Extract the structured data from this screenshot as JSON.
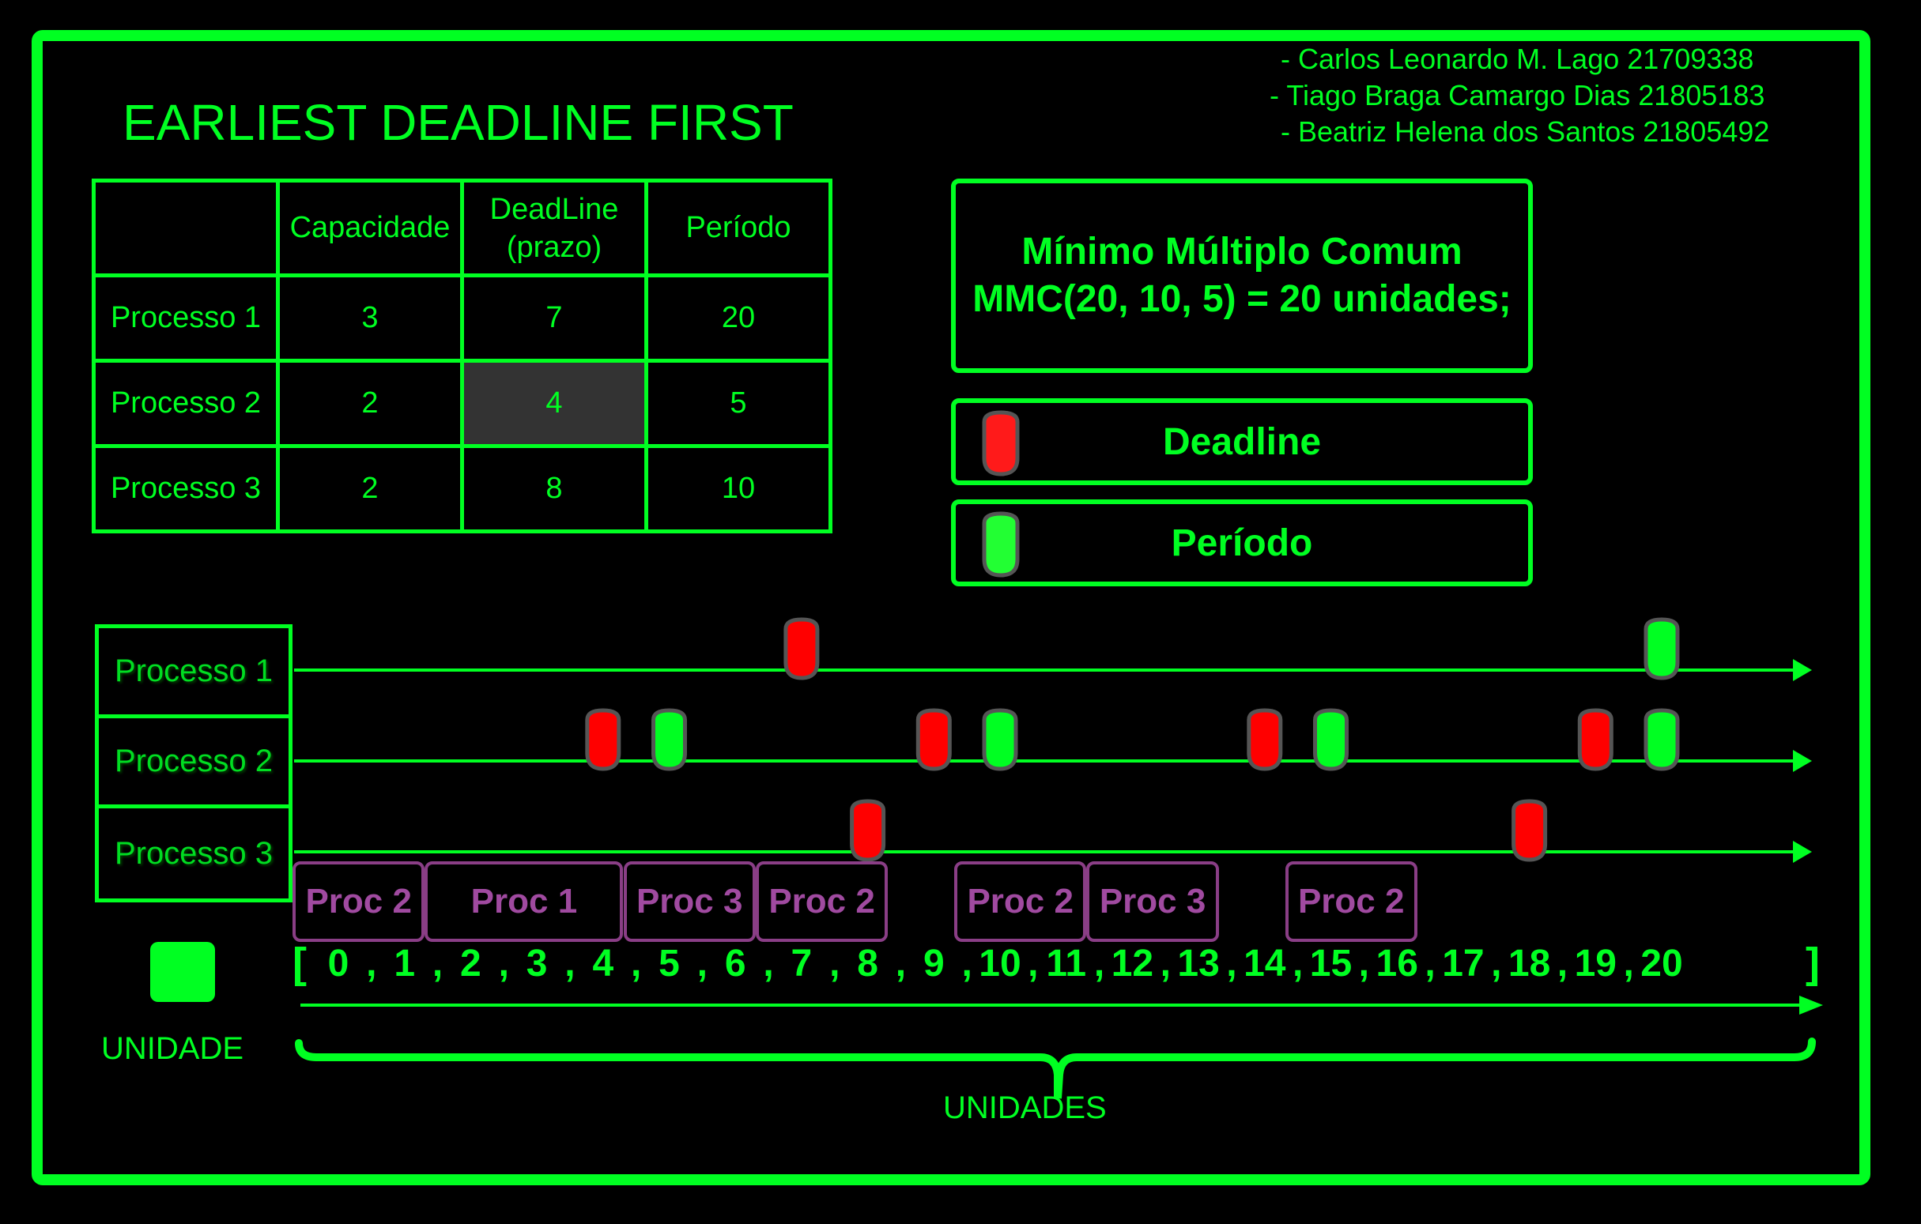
{
  "title": "EARLIEST DEADLINE FIRST",
  "authors": [
    "- Carlos Leonardo M. Lago 21709338",
    "- Tiago Braga Camargo Dias 21805183",
    " - Beatriz Helena dos Santos 21805492"
  ],
  "table": {
    "headers": [
      "",
      "Capacidade",
      "DeadLine\n(prazo)",
      "Período"
    ],
    "rows": [
      [
        "Processo 1",
        "3",
        "7",
        "20"
      ],
      [
        "Processo 2",
        "2",
        "4",
        "5"
      ],
      [
        "Processo 3",
        "2",
        "8",
        "10"
      ]
    ],
    "highlighted_cell": "Processo 2 / DeadLine"
  },
  "mmc": {
    "line1": "Mínimo Múltiplo Comum",
    "line2": "MMC(20, 10, 5) = 20 unidades;"
  },
  "legend": {
    "deadline": "Deadline",
    "periodo": "Período"
  },
  "timeline": {
    "rows": [
      "Processo 1",
      "Processo 2",
      "Processo 3"
    ],
    "markers": {
      "Processo 1": {
        "deadline": [
          7
        ],
        "periodo": [
          20
        ]
      },
      "Processo 2": {
        "deadline": [
          4,
          9,
          14,
          19
        ],
        "periodo": [
          5,
          10,
          15,
          20
        ]
      },
      "Processo 3": {
        "deadline": [
          8,
          18
        ],
        "periodo": []
      }
    },
    "schedule": [
      {
        "label": "Proc 2",
        "start": 0,
        "end": 2
      },
      {
        "label": "Proc 1",
        "start": 2,
        "end": 5
      },
      {
        "label": "Proc 3",
        "start": 5,
        "end": 7
      },
      {
        "label": "Proc 2",
        "start": 7,
        "end": 9
      },
      {
        "label": "Proc 2",
        "start": 10,
        "end": 12
      },
      {
        "label": "Proc 3",
        "start": 12,
        "end": 14
      },
      {
        "label": "Proc 2",
        "start": 15,
        "end": 17
      }
    ],
    "ticks": [
      "0",
      "1",
      "2",
      "3",
      "4",
      "5",
      "6",
      "7",
      "8",
      "9",
      "10",
      "11",
      "12",
      "13",
      "14",
      "15",
      "16",
      "17",
      "18",
      "19",
      "20"
    ],
    "bracket_open": "[",
    "bracket_close": "]",
    "separator": ","
  },
  "unit_label": "UNIDADE",
  "units_label": "UNIDADES",
  "colors": {
    "accent": "#00ff22",
    "deadline": "#ff0000",
    "periodo": "#00ff22",
    "proc": "#8a3e86",
    "highlight": "#333333"
  }
}
